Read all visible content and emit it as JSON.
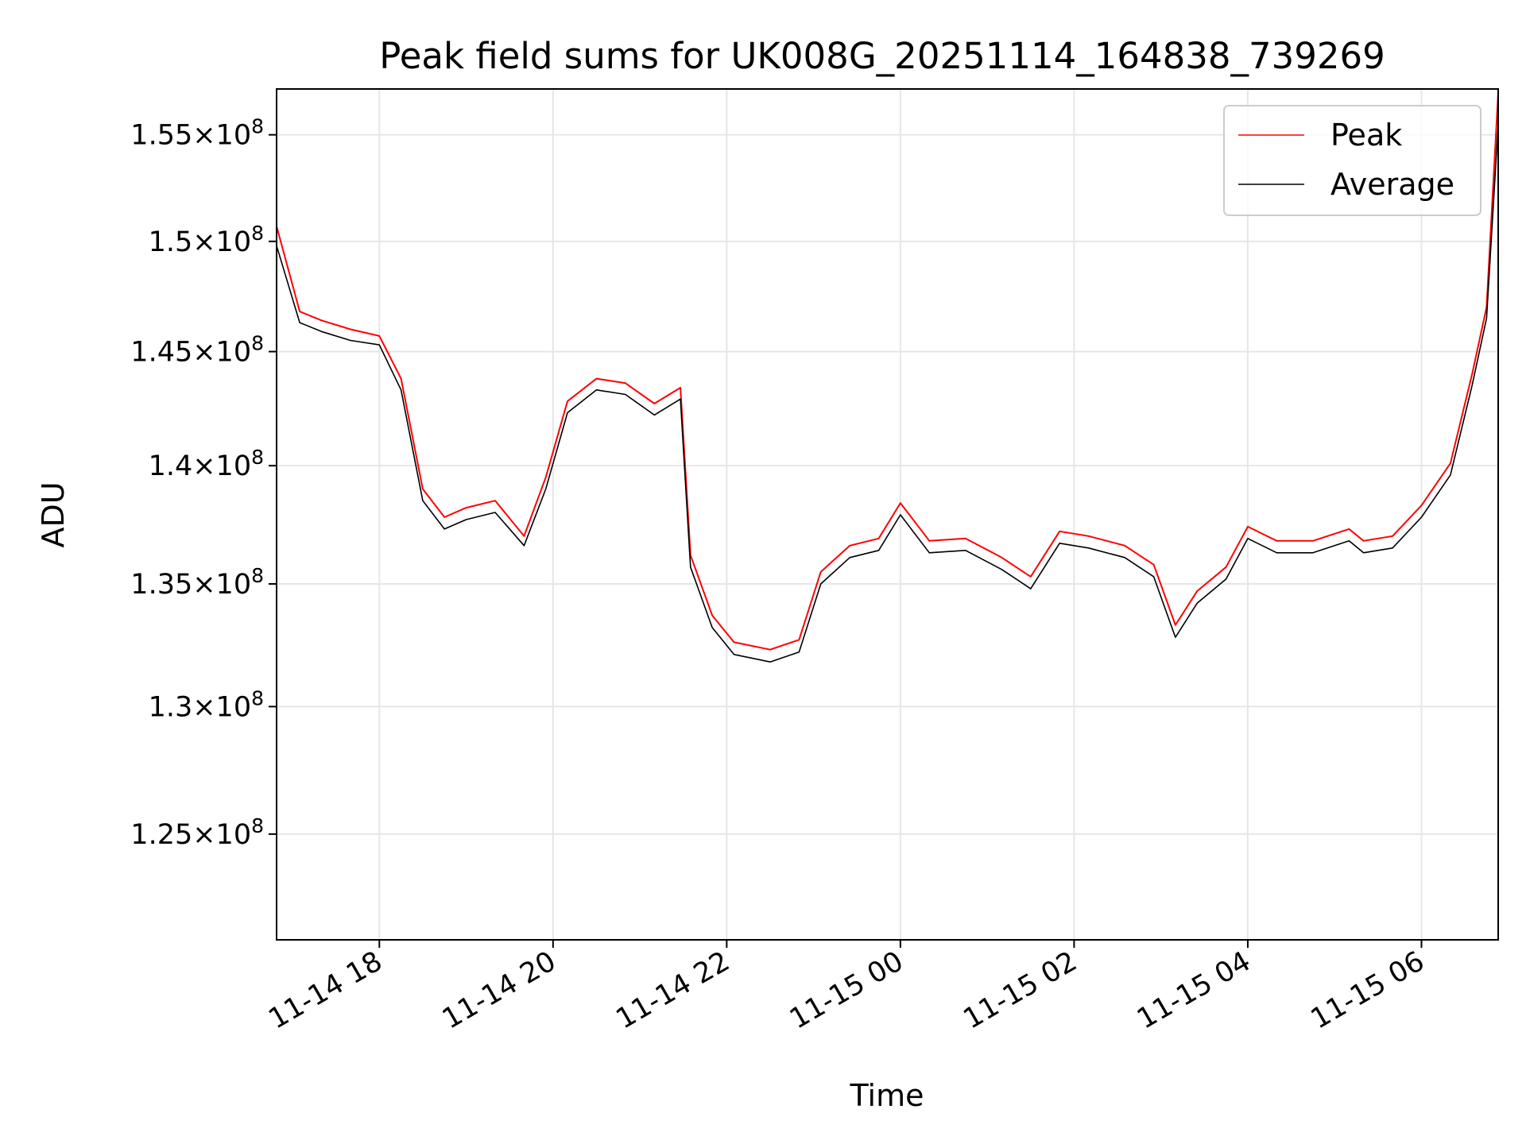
{
  "chart_data": {
    "type": "line",
    "title": "Peak field sums for UK008G_20251114_164838_739269",
    "xlabel": "Time",
    "ylabel": "ADU",
    "yscale": "log",
    "grid": true,
    "legend_position": "top-right",
    "x_ticks": [
      "11-14 18",
      "11-14 20",
      "11-14 22",
      "11-15 00",
      "11-15 02",
      "11-15 04",
      "11-15 06"
    ],
    "y_ticks": [
      {
        "value": 125000000,
        "mantissa": "1.25",
        "exponent": "8"
      },
      {
        "value": 130000000,
        "mantissa": "1.3",
        "exponent": "8"
      },
      {
        "value": 135000000,
        "mantissa": "1.35",
        "exponent": "8"
      },
      {
        "value": 140000000,
        "mantissa": "1.4",
        "exponent": "8"
      },
      {
        "value": 145000000,
        "mantissa": "1.45",
        "exponent": "8"
      },
      {
        "value": 150000000,
        "mantissa": "1.5",
        "exponent": "8"
      },
      {
        "value": 155000000,
        "mantissa": "1.55",
        "exponent": "8"
      }
    ],
    "xlim": [
      "2025-11-14 16:49",
      "2025-11-15 06:53"
    ],
    "ylim": [
      121000000,
      157200000
    ],
    "x": [
      "2025-11-14 16:49",
      "2025-11-14 17:05",
      "2025-11-14 17:20",
      "2025-11-14 17:40",
      "2025-11-14 18:00",
      "2025-11-14 18:15",
      "2025-11-14 18:30",
      "2025-11-14 18:45",
      "2025-11-14 19:00",
      "2025-11-14 19:20",
      "2025-11-14 19:40",
      "2025-11-14 19:55",
      "2025-11-14 20:10",
      "2025-11-14 20:30",
      "2025-11-14 20:50",
      "2025-11-14 21:10",
      "2025-11-14 21:28",
      "2025-11-14 21:35",
      "2025-11-14 21:50",
      "2025-11-14 22:05",
      "2025-11-14 22:30",
      "2025-11-14 22:50",
      "2025-11-14 23:05",
      "2025-11-14 23:25",
      "2025-11-14 23:45",
      "2025-11-15 00:00",
      "2025-11-15 00:20",
      "2025-11-15 00:45",
      "2025-11-15 01:10",
      "2025-11-15 01:30",
      "2025-11-15 01:50",
      "2025-11-15 02:10",
      "2025-11-15 02:35",
      "2025-11-15 02:55",
      "2025-11-15 03:10",
      "2025-11-15 03:25",
      "2025-11-15 03:45",
      "2025-11-15 04:00",
      "2025-11-15 04:20",
      "2025-11-15 04:45",
      "2025-11-15 05:10",
      "2025-11-15 05:20",
      "2025-11-15 05:40",
      "2025-11-15 06:00",
      "2025-11-15 06:20",
      "2025-11-15 06:35",
      "2025-11-15 06:45",
      "2025-11-15 06:53"
    ],
    "series": [
      {
        "name": "Peak",
        "color": "#ff0000",
        "values": [
          150700000,
          146800000,
          146400000,
          146000000,
          145700000,
          143800000,
          139000000,
          137800000,
          138200000,
          138500000,
          137000000,
          139500000,
          142800000,
          143800000,
          143600000,
          142700000,
          143400000,
          136200000,
          133700000,
          132600000,
          132300000,
          132700000,
          135500000,
          136600000,
          136900000,
          138400000,
          136800000,
          136900000,
          136100000,
          135300000,
          137200000,
          137000000,
          136600000,
          135800000,
          133300000,
          134700000,
          135700000,
          137400000,
          136800000,
          136800000,
          137300000,
          136800000,
          137000000,
          138300000,
          140100000,
          144000000,
          147000000,
          157000000
        ]
      },
      {
        "name": "Average",
        "color": "#000000",
        "values": [
          149800000,
          146300000,
          145900000,
          145500000,
          145300000,
          143300000,
          138500000,
          137300000,
          137700000,
          138000000,
          136600000,
          139000000,
          142300000,
          143300000,
          143100000,
          142200000,
          142900000,
          135700000,
          133200000,
          132100000,
          131800000,
          132200000,
          135000000,
          136100000,
          136400000,
          137900000,
          136300000,
          136400000,
          135600000,
          134800000,
          136700000,
          136500000,
          136100000,
          135300000,
          132800000,
          134200000,
          135200000,
          136900000,
          136300000,
          136300000,
          136800000,
          136300000,
          136500000,
          137800000,
          139600000,
          143500000,
          146500000,
          155500000
        ]
      }
    ]
  }
}
